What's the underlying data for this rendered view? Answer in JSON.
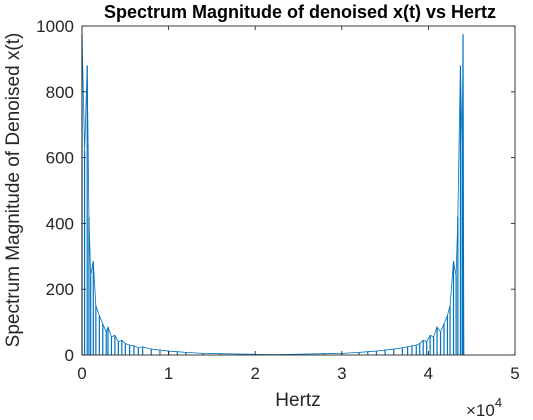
{
  "chart_data": {
    "type": "line",
    "title": "Spectrum Magnitude of denoised x(t) vs Hertz",
    "xlabel": "Hertz",
    "ylabel": "Spectrum Magnitude of Denoised x(t)",
    "x_exponent_base": "×10",
    "x_exponent_power": "4",
    "xlim": [
      0,
      5
    ],
    "ylim": [
      0,
      1000
    ],
    "x_ticks": [
      0,
      1,
      2,
      3,
      4,
      5
    ],
    "x_tick_labels": [
      "0",
      "1",
      "2",
      "3",
      "4",
      "5"
    ],
    "y_ticks": [
      0,
      200,
      400,
      600,
      800,
      1000
    ],
    "y_tick_labels": [
      "0",
      "200",
      "400",
      "600",
      "800",
      "1000"
    ],
    "grid": false,
    "box": true,
    "line_color": "#0072BD",
    "series": [
      {
        "x": [
          0,
          0.03,
          0.06,
          0.08,
          0.1,
          0.13,
          0.16,
          0.2,
          0.24,
          0.28,
          0.3,
          0.34,
          0.38,
          0.42,
          0.46,
          0.5,
          0.55,
          0.6,
          0.65,
          0.7,
          0.8,
          0.9,
          1.0,
          1.1,
          1.2,
          1.4,
          1.6,
          1.8,
          2.0,
          2.205,
          2.4,
          2.6,
          2.8,
          3.0,
          3.2,
          3.3,
          3.4,
          3.5,
          3.6,
          3.7,
          3.76,
          3.81,
          3.86,
          3.9,
          3.94,
          3.98,
          4.02,
          4.06,
          4.1,
          4.14,
          4.18,
          4.22,
          4.25,
          4.29,
          4.32,
          4.34,
          4.37,
          4.39,
          4.4,
          4.41
        ],
        "values": [
          975,
          620,
          880,
          420,
          240,
          285,
          150,
          120,
          95,
          70,
          85,
          55,
          60,
          40,
          45,
          35,
          30,
          28,
          22,
          25,
          18,
          15,
          12,
          10,
          8,
          5,
          4,
          3,
          2,
          1,
          2,
          3,
          4,
          5,
          8,
          10,
          12,
          15,
          18,
          22,
          25,
          28,
          30,
          35,
          45,
          40,
          60,
          55,
          85,
          70,
          95,
          120,
          150,
          285,
          240,
          420,
          880,
          620,
          975,
          0
        ]
      }
    ]
  }
}
